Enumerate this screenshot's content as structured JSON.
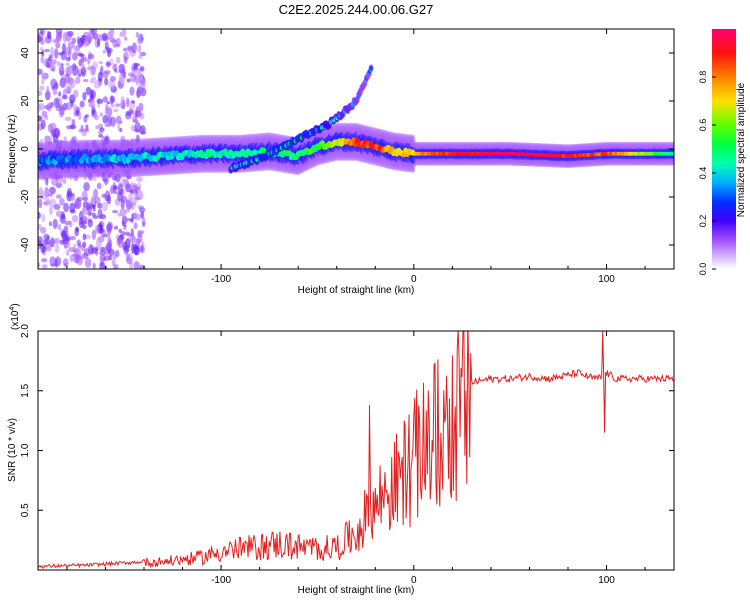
{
  "figure": {
    "title": "C2E2.2025.244.00.06.G27"
  },
  "chart_data": [
    {
      "type": "heatmap",
      "title": "C2E2.2025.244.00.06.G27",
      "xlabel": "Height of straight line (km)",
      "ylabel": "Frequency (Hz)",
      "xlim": [
        -195,
        135
      ],
      "ylim": [
        -50,
        50
      ],
      "xticks": [
        -100,
        0,
        100
      ],
      "yticks": [
        -40,
        -20,
        0,
        20,
        40
      ],
      "xtick_labels": [
        "-100",
        "0",
        "100"
      ],
      "ytick_labels": [
        "-40",
        "-20",
        "0",
        "20",
        "40"
      ],
      "colorbar": {
        "label": "Normalized spectral amplitude",
        "range": [
          0,
          1
        ],
        "ticks": [
          0.0,
          0.2,
          0.4,
          0.6,
          0.8
        ],
        "tick_labels": [
          "0.0",
          "0.2",
          "0.4",
          "0.6",
          "0.8"
        ],
        "colors": [
          "#ffffff",
          "#c8a0ff",
          "#8000ff",
          "#0000ff",
          "#00c8ff",
          "#00ff80",
          "#40ff00",
          "#c0ff00",
          "#ffd000",
          "#ff6000",
          "#ff0000",
          "#ff0080"
        ]
      },
      "main_track": {
        "x": [
          -195,
          -170,
          -150,
          -130,
          -110,
          -90,
          -75,
          -60,
          -50,
          -40,
          -30,
          -20,
          -10,
          0,
          20,
          50,
          80,
          100,
          135
        ],
        "frequency": [
          -5,
          -4,
          -4,
          -3,
          -2,
          -2,
          -1,
          -3,
          1,
          3,
          3,
          1,
          -1,
          -2,
          -2,
          -2,
          -3,
          -2,
          -2
        ],
        "amplitude": [
          0.3,
          0.35,
          0.38,
          0.4,
          0.45,
          0.45,
          0.5,
          0.5,
          0.55,
          0.65,
          0.85,
          0.9,
          0.7,
          0.75,
          0.9,
          1.0,
          0.9,
          0.85,
          0.45
        ]
      },
      "secondary_track": {
        "x": [
          -95,
          -80,
          -65,
          -55,
          -45,
          -38,
          -30,
          -22
        ],
        "frequency": [
          -8,
          -4,
          2,
          6,
          10,
          14,
          20,
          34
        ],
        "amplitude": [
          0.35,
          0.4,
          0.45,
          0.4,
          0.35,
          0.3,
          0.25,
          0.2
        ]
      },
      "noise_region_x": [
        -195,
        -140
      ]
    },
    {
      "type": "line",
      "xlabel": "Height of straight line (km)",
      "ylabel": "SNR (10 * v/v)",
      "scale_label": "(x10",
      "scale_exponent": "4",
      "xlim": [
        -195,
        135
      ],
      "ylim": [
        0,
        2.0
      ],
      "xticks": [
        -100,
        0,
        100
      ],
      "yticks": [
        0.5,
        1.0,
        1.5,
        2.0
      ],
      "xtick_labels": [
        "-100",
        "0",
        "100"
      ],
      "ytick_labels": [
        "0.5",
        "1.0",
        "1.5",
        "2.0"
      ],
      "line_color": "#e02020",
      "series": [
        {
          "name": "SNR",
          "x": [
            -195,
            -170,
            -150,
            -130,
            -110,
            -100,
            -90,
            -80,
            -70,
            -60,
            -50,
            -40,
            -30,
            -25,
            -20,
            -15,
            -10,
            -5,
            0,
            5,
            10,
            15,
            20,
            25,
            30,
            40,
            50,
            60,
            70,
            80,
            85,
            90,
            95,
            98,
            100,
            105,
            110,
            120,
            135
          ],
          "y": [
            0.03,
            0.04,
            0.06,
            0.08,
            0.12,
            0.18,
            0.2,
            0.22,
            0.25,
            0.22,
            0.2,
            0.22,
            0.35,
            0.5,
            0.6,
            0.75,
            0.8,
            0.95,
            1.05,
            1.15,
            1.25,
            1.35,
            1.45,
            1.52,
            1.57,
            1.6,
            1.6,
            1.62,
            1.6,
            1.63,
            1.65,
            1.62,
            1.6,
            1.62,
            1.65,
            1.6,
            1.6,
            1.6,
            1.6
          ]
        }
      ],
      "spikes": [
        {
          "x": -23,
          "y": 1.38
        },
        {
          "x": -5,
          "y": 1.25
        },
        {
          "x": 8,
          "y": 1.25
        },
        {
          "x": 12,
          "y": 0.55
        },
        {
          "x": 98,
          "y": 2.0
        },
        {
          "x": 99,
          "y": 1.15
        }
      ]
    }
  ]
}
